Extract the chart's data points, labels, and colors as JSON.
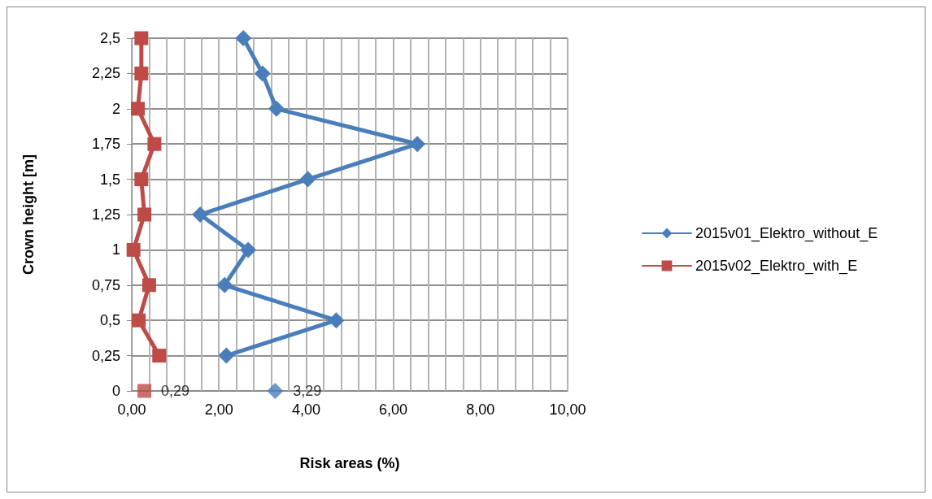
{
  "chart_data": {
    "type": "line",
    "orientation": "horizontal",
    "xlabel": "Risk areas (%)",
    "ylabel": "Crown height [m]",
    "categories": [
      "2,5",
      "2,25",
      "2",
      "1,75",
      "1,5",
      "1,25",
      "1",
      "0,75",
      "0,5",
      "0,25",
      "0"
    ],
    "series": [
      {
        "name": "2015v01_Elektro_without_E",
        "color": "#4a7ebb",
        "marker": "diamond",
        "values": [
          2.56,
          3.0,
          3.32,
          6.55,
          4.04,
          1.57,
          2.67,
          2.13,
          4.69,
          2.17,
          null
        ]
      },
      {
        "name": "2015v02_Elektro_with_E",
        "color": "#be4b48",
        "marker": "square",
        "values": [
          0.22,
          0.22,
          0.14,
          0.52,
          0.22,
          0.29,
          0.04,
          0.4,
          0.16,
          0.63,
          null
        ]
      },
      {
        "type": "scatter",
        "color": "#be4b48",
        "marker": "square",
        "values": [
          null,
          null,
          null,
          null,
          null,
          null,
          null,
          null,
          null,
          null,
          0.29
        ],
        "value_labels": [
          null,
          null,
          null,
          null,
          null,
          null,
          null,
          null,
          null,
          null,
          "0,29"
        ]
      },
      {
        "type": "scatter",
        "color": "#4a7ebb",
        "marker": "diamond",
        "values": [
          null,
          null,
          null,
          null,
          null,
          null,
          null,
          null,
          null,
          null,
          3.29
        ],
        "value_labels": [
          null,
          null,
          null,
          null,
          null,
          null,
          null,
          null,
          null,
          null,
          "3,29"
        ]
      }
    ],
    "xlim": [
      0,
      10
    ],
    "xticks": [
      {
        "value": 0,
        "label": "0,00"
      },
      {
        "value": 0.4,
        "label": null
      },
      {
        "value": 0.8,
        "label": null
      },
      {
        "value": 1.2,
        "label": null
      },
      {
        "value": 1.6,
        "label": null
      },
      {
        "value": 2,
        "label": "2,00"
      },
      {
        "value": 2.4,
        "label": null
      },
      {
        "value": 2.8,
        "label": null
      },
      {
        "value": 3.2,
        "label": null
      },
      {
        "value": 3.6,
        "label": null
      },
      {
        "value": 4,
        "label": "4,00"
      },
      {
        "value": 4.4,
        "label": null
      },
      {
        "value": 4.8,
        "label": null
      },
      {
        "value": 5.2,
        "label": null
      },
      {
        "value": 5.6,
        "label": null
      },
      {
        "value": 6,
        "label": "6,00"
      },
      {
        "value": 6.4,
        "label": null
      },
      {
        "value": 6.8,
        "label": null
      },
      {
        "value": 7.2,
        "label": null
      },
      {
        "value": 7.6,
        "label": null
      },
      {
        "value": 8,
        "label": "8,00"
      },
      {
        "value": 8.4,
        "label": null
      },
      {
        "value": 8.8,
        "label": null
      },
      {
        "value": 9.2,
        "label": null
      },
      {
        "value": 9.6,
        "label": null
      },
      {
        "value": 10,
        "label": "10,00"
      }
    ],
    "grid": true,
    "legend": "right",
    "line_style": "solid"
  }
}
